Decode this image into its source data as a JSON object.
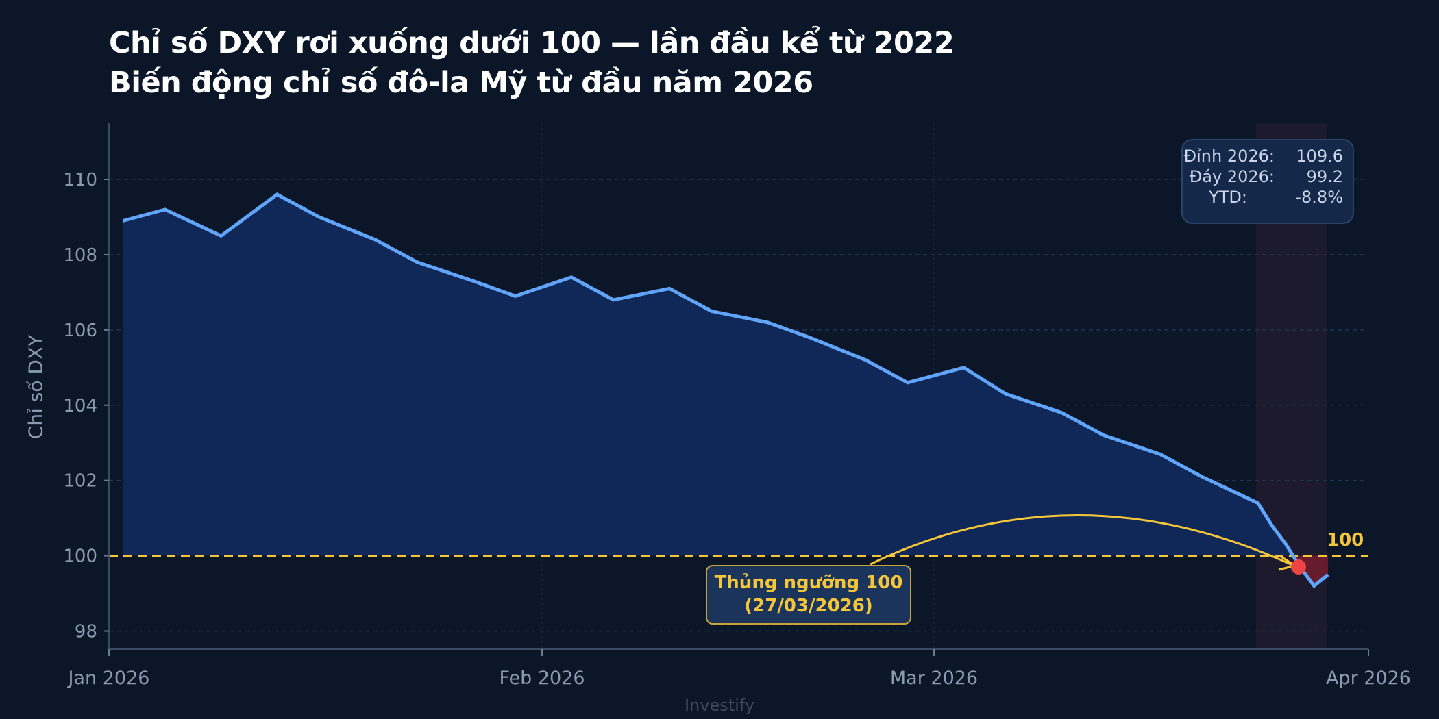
{
  "title": {
    "line1": "Chỉ số DXY rơi xuống dưới 100 — lần đầu kể từ 2022",
    "line2": "Biến động chỉ số đô-la Mỹ từ đầu năm 2026"
  },
  "stats_box": {
    "rows": [
      {
        "label": "Đỉnh 2026:",
        "value": "109.6"
      },
      {
        "label": "Đáy 2026:",
        "value": "99.2"
      },
      {
        "label": "YTD:",
        "value": "-8.8%"
      }
    ]
  },
  "callout": {
    "line1": "Thủng ngưỡng 100",
    "line2": "(27/03/2026)"
  },
  "threshold_label": "100",
  "source": "Investify",
  "colors": {
    "background": "#0b1628",
    "line": "#60a5fa",
    "area_fill": "#10295a",
    "below_fill": "#7f1d2d",
    "threshold": "#f5c53a",
    "marker": "#ef4444",
    "highlight_band": "#1c1a2c"
  },
  "chart_data": {
    "type": "area",
    "title": "Chỉ số DXY rơi xuống dưới 100 — lần đầu kể từ 2022",
    "subtitle": "Biến động chỉ số đô-la Mỹ từ đầu năm 2026",
    "xlabel": "",
    "ylabel": "Chỉ số DXY",
    "ylim": [
      97.5,
      111.2
    ],
    "yticks": [
      98,
      100,
      102,
      104,
      106,
      108,
      110
    ],
    "xticks": [
      "Jan 2026",
      "Feb 2026",
      "Mar 2026",
      "Apr 2026"
    ],
    "grid": true,
    "series": [
      {
        "name": "DXY",
        "x": [
          "2026-01-02",
          "2026-01-05",
          "2026-01-09",
          "2026-01-13",
          "2026-01-16",
          "2026-01-20",
          "2026-01-23",
          "2026-01-27",
          "2026-01-30",
          "2026-02-03",
          "2026-02-06",
          "2026-02-10",
          "2026-02-13",
          "2026-02-17",
          "2026-02-20",
          "2026-02-24",
          "2026-02-27",
          "2026-03-03",
          "2026-03-06",
          "2026-03-10",
          "2026-03-13",
          "2026-03-17",
          "2026-03-20",
          "2026-03-24",
          "2026-03-25",
          "2026-03-26",
          "2026-03-27",
          "2026-03-28",
          "2026-03-29"
        ],
        "values": [
          108.9,
          109.2,
          108.5,
          109.6,
          109.0,
          108.4,
          107.8,
          107.3,
          106.9,
          107.4,
          106.8,
          107.1,
          106.5,
          106.2,
          105.8,
          105.2,
          104.6,
          105.0,
          104.3,
          103.8,
          103.2,
          102.7,
          102.1,
          101.4,
          100.8,
          100.3,
          99.7,
          99.2,
          99.5
        ]
      }
    ],
    "reference_line": {
      "y": 100,
      "label": "100",
      "style": "dashed"
    },
    "highlight_range": [
      "2026-03-24",
      "2026-03-29"
    ],
    "annotations": [
      {
        "text": "Thủng ngưỡng 100 (27/03/2026)",
        "x": "2026-03-27",
        "y": 99.7
      },
      {
        "text": "Đỉnh 2026: 109.6 | Đáy 2026: 99.2 | YTD: -8.8%"
      }
    ],
    "source": "Investify"
  }
}
